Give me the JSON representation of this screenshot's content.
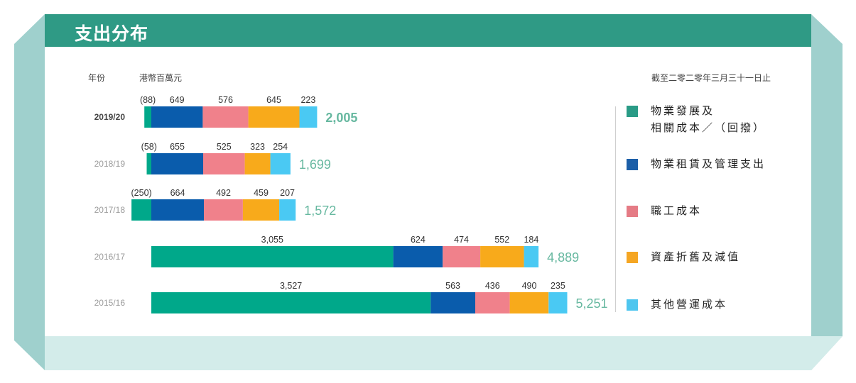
{
  "header": {
    "title": "支出分布"
  },
  "labels": {
    "year": "年份",
    "unit": "港幣百萬元",
    "date_note": "截至二零二零年三月三十一日止"
  },
  "colors": {
    "header": "#2f9a85",
    "frame": "#9fd0cd",
    "frame_light": "#d3ecea",
    "total_text": "#67b8a0"
  },
  "legend": [
    {
      "label": "物業發展及\n相關成本／（回撥）",
      "color": "#2a9b86",
      "icon": "square-swatch"
    },
    {
      "label": "物業租賃及管理支出",
      "color": "#1c5fa8",
      "icon": "square-swatch"
    },
    {
      "label": "職工成本",
      "color": "#e57b85",
      "icon": "square-swatch"
    },
    {
      "label": "資產折舊及減值",
      "color": "#f5a623",
      "icon": "square-swatch"
    },
    {
      "label": "其他營運成本",
      "color": "#4ec6ef",
      "icon": "square-swatch"
    }
  ],
  "chart_data": {
    "type": "bar",
    "orientation": "horizontal",
    "stacked": true,
    "categories": [
      "2019/20",
      "2018/19",
      "2017/18",
      "2016/17",
      "2015/16"
    ],
    "series": [
      {
        "name": "物業發展及相關成本／（回撥）",
        "values": [
          -88,
          -58,
          -250,
          3055,
          3527
        ],
        "labels": [
          "(88)",
          "(58)",
          "(250)",
          "3,055",
          "3,527"
        ],
        "color": "#00a88a"
      },
      {
        "name": "物業租賃及管理支出",
        "values": [
          649,
          655,
          664,
          624,
          563
        ],
        "labels": [
          "649",
          "655",
          "664",
          "624",
          "563"
        ],
        "color": "#0a5cac"
      },
      {
        "name": "職工成本",
        "values": [
          576,
          525,
          492,
          474,
          436
        ],
        "labels": [
          "576",
          "525",
          "492",
          "474",
          "436"
        ],
        "color": "#f0818b"
      },
      {
        "name": "資產折舊及減值",
        "values": [
          645,
          323,
          459,
          552,
          490
        ],
        "labels": [
          "645",
          "323",
          "459",
          "552",
          "490"
        ],
        "color": "#f8aa1b"
      },
      {
        "name": "其他營運成本",
        "values": [
          223,
          254,
          207,
          184,
          235
        ],
        "labels": [
          "223",
          "254",
          "207",
          "184",
          "235"
        ],
        "color": "#4ac9f3"
      }
    ],
    "totals": [
      "2,005",
      "1,699",
      "1,572",
      "4,889",
      "5,251"
    ],
    "highlight_category": "2019/20",
    "legend_position": "right",
    "grid": false
  }
}
